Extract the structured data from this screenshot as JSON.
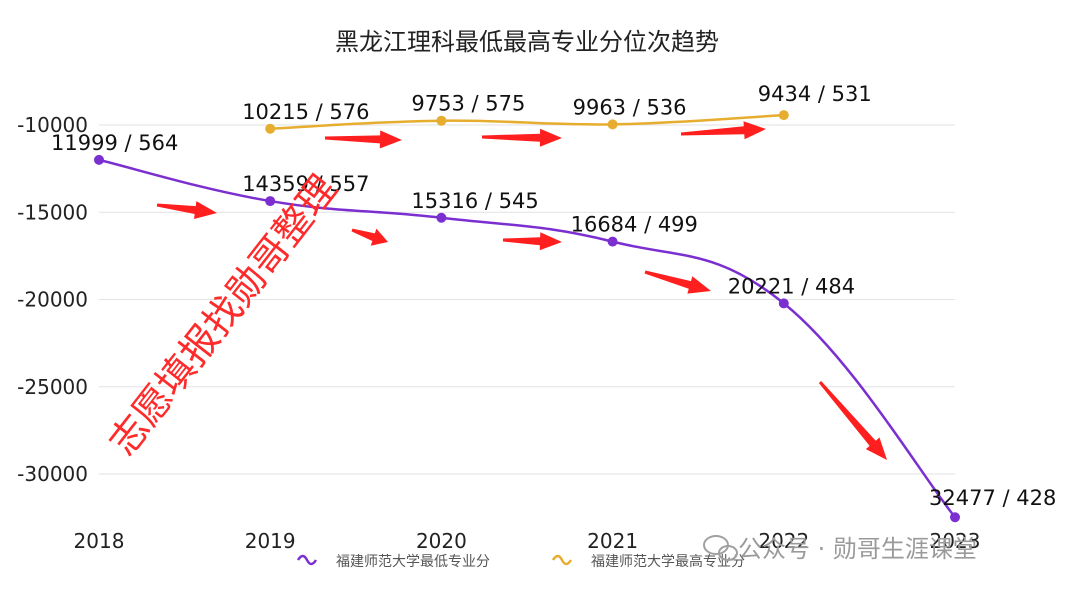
{
  "chart_data": {
    "type": "line",
    "title": "黑龙江理科最低最高专业分位次趋势",
    "x": [
      2018,
      2019,
      2020,
      2021,
      2022,
      2023
    ],
    "y_ticks": [
      -10000,
      -15000,
      -20000,
      -25000,
      -30000
    ],
    "ylim": [
      -32500,
      -7500
    ],
    "grid": true,
    "legend_position": "bottom-center",
    "series": [
      {
        "name": "福建师范大学最低专业分",
        "color": "#7b2fd0",
        "values": [
          -11999,
          -14359,
          -15316,
          -16684,
          -20221,
          -32477
        ],
        "labels": [
          "11999 / 564",
          "14359 / 557",
          "15316 / 545",
          "16684 / 499",
          "20221 / 484",
          "32477 / 428"
        ]
      },
      {
        "name": "福建师范大学最高专业分",
        "color": "#e6ad2e",
        "values": [
          null,
          -10215,
          -9753,
          -9963,
          -9434,
          null
        ],
        "labels": [
          null,
          "10215 / 576",
          "9753 / 575",
          "9963 / 536",
          "9434 / 531",
          null
        ]
      }
    ],
    "annotations": {
      "watermark": "志愿填报找勋哥整理",
      "wechat": "公众号 · 勋哥生涯课堂",
      "arrow_color": "#ff1f1f"
    }
  }
}
